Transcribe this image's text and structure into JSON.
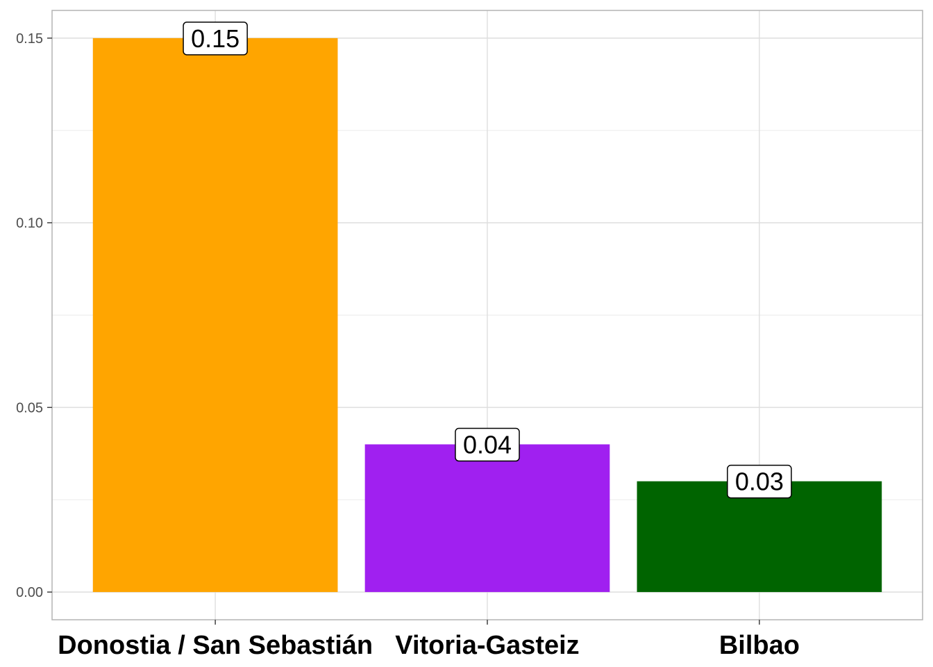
{
  "chart_data": {
    "type": "bar",
    "categories": [
      "Donostia / San Sebastián",
      "Vitoria-Gasteiz",
      "Bilbao"
    ],
    "values": [
      0.15,
      0.04,
      0.03
    ],
    "data_labels": [
      "0.15",
      "0.04",
      "0.03"
    ],
    "colors": [
      "#FFA500",
      "#A020F0",
      "#006400"
    ],
    "y_ticks": [
      0.0,
      0.05,
      0.1,
      0.15
    ],
    "y_tick_labels": [
      "0.00",
      "0.05",
      "0.10",
      "0.15"
    ],
    "ylim": [
      -0.0075,
      0.1575
    ],
    "grid": true,
    "legend": "none",
    "title": "",
    "xlabel": "",
    "ylabel": ""
  }
}
